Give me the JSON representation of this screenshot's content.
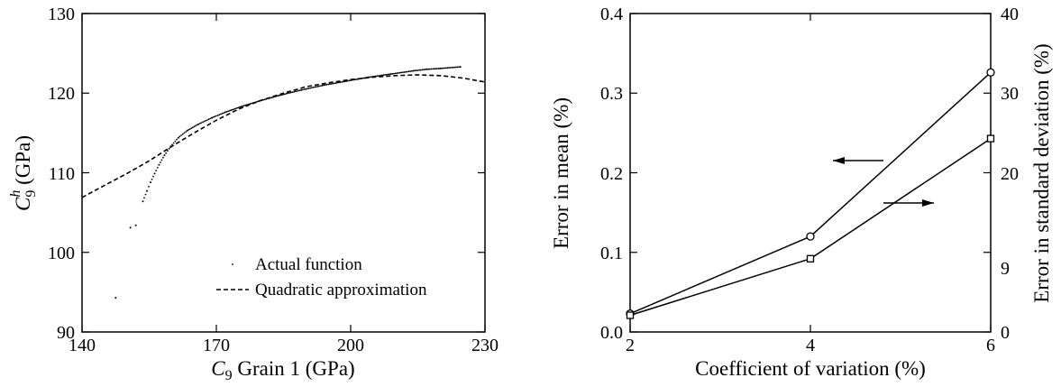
{
  "chart_data": [
    {
      "type": "scatter",
      "xlabel": "C9 Grain 1 (GPa)",
      "ylabel": "C9h (GPa)",
      "xlim": [
        140,
        230
      ],
      "ylim": [
        90,
        130
      ],
      "xticks": [
        "140",
        "170",
        "200",
        "230"
      ],
      "yticks": [
        "90",
        "100",
        "110",
        "120",
        "130"
      ],
      "legend_placement": "bottom-right",
      "series": [
        {
          "name": "Actual function",
          "style": "dots",
          "points": [
            [
              147.5,
              94.3
            ],
            [
              150.8,
              103.1
            ],
            [
              152.0,
              103.4
            ],
            [
              153.6,
              106.4
            ],
            [
              154.5,
              107.7
            ],
            [
              155.3,
              108.8
            ],
            [
              156.2,
              109.9
            ],
            [
              157.2,
              111.0
            ],
            [
              158.4,
              112.2
            ],
            [
              159.8,
              113.3
            ],
            [
              161.5,
              114.4
            ],
            [
              163.5,
              115.3
            ],
            [
              166.0,
              116.1
            ],
            [
              169.0,
              116.9
            ],
            [
              172.0,
              117.6
            ],
            [
              175.5,
              118.3
            ],
            [
              179.5,
              119.0
            ],
            [
              184.0,
              119.7
            ],
            [
              189.0,
              120.4
            ],
            [
              194.0,
              121.0
            ],
            [
              199.0,
              121.5
            ],
            [
              204.0,
              122.0
            ],
            [
              209.0,
              122.4
            ],
            [
              214.0,
              122.8
            ],
            [
              217.0,
              123.0
            ],
            [
              220.0,
              123.1
            ],
            [
              224.5,
              123.3
            ]
          ]
        },
        {
          "name": "Quadratic approximation",
          "style": "dashed",
          "points": [
            [
              140,
              106.9
            ],
            [
              145,
              108.4
            ],
            [
              150,
              109.9
            ],
            [
              155,
              111.5
            ],
            [
              160,
              113.3
            ],
            [
              165,
              115.0
            ],
            [
              170,
              116.6
            ],
            [
              175,
              118.0
            ],
            [
              180,
              119.1
            ],
            [
              185,
              120.0
            ],
            [
              190,
              120.8
            ],
            [
              195,
              121.3
            ],
            [
              200,
              121.7
            ],
            [
              205,
              122.0
            ],
            [
              210,
              122.2
            ],
            [
              215,
              122.3
            ],
            [
              220,
              122.2
            ],
            [
              225,
              121.9
            ],
            [
              230,
              121.4
            ]
          ]
        }
      ]
    },
    {
      "type": "line",
      "xlabel": "Coefficient of variation (%)",
      "ylabel": "Error in mean (%)",
      "y2label": "Error in standard deviation (%)",
      "xlim": [
        2,
        6
      ],
      "ylim": [
        0,
        0.4
      ],
      "y2lim": [
        0,
        40
      ],
      "xticks": [
        "2",
        "4",
        "6"
      ],
      "yticks": [
        "0.0",
        "0.1",
        "0.2",
        "0.3",
        "0.4"
      ],
      "y2ticks": [
        "0",
        "9",
        "20",
        "30",
        "40"
      ],
      "grid": false,
      "series": [
        {
          "axis": "left",
          "marker": "circle",
          "x": [
            2,
            4,
            6
          ],
          "values": [
            0.023,
            0.12,
            0.326
          ]
        },
        {
          "axis": "right",
          "marker": "square",
          "x": [
            2,
            4,
            6
          ],
          "values": [
            2.1,
            9.2,
            24.3
          ]
        }
      ],
      "annotations": [
        {
          "type": "arrow",
          "direction": "left",
          "target_axis": "left"
        },
        {
          "type": "arrow",
          "direction": "right",
          "target_axis": "right"
        }
      ]
    }
  ]
}
